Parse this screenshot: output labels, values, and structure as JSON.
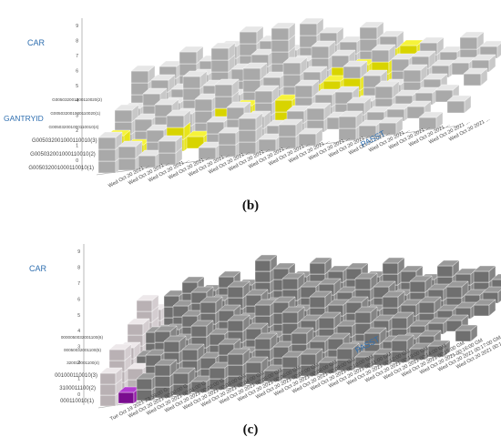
{
  "colors": {
    "gray_top": "#e6e6e6",
    "gray_front": "#a9a9a9",
    "gray_side": "#c8c8c8",
    "dark_top": "#9a9a9a",
    "dark_front": "#6f6f6f",
    "dark_side": "#858585",
    "yellow_top": "#f6f33a",
    "yellow_front": "#d8d400",
    "yellow_side": "#e8e51a",
    "magenta_top": "#b23bd1",
    "magenta_front": "#7a0d8f",
    "magenta_side": "#941aa9",
    "pale_top": "#ede8ea",
    "pale_front": "#b9b1b4",
    "pale_side": "#d4cdd0",
    "axis_title": "#2f6fb0",
    "tick": "#444444",
    "axis_line": "#9a9a9a"
  },
  "chart_data": [
    {
      "type": "bar3d",
      "panel_label": "(b)",
      "z_axis_label": "CAR",
      "y_axis_label": "GANTRYID",
      "x_axis_label": "PASST",
      "z_ticks": [
        "0",
        "1",
        "2",
        "3",
        "4",
        "5",
        "6",
        "7",
        "8",
        "9"
      ],
      "y_categories": [
        "G005032001000110010(1)",
        "G005032001000110010(2)",
        "G005032001000110010(3)",
        "G005032001000110010(4)",
        "G005032001000110020(1)",
        "G005032001000110020(2)"
      ],
      "x_tick_labels": [
        "Wed Oct 20 2021 ...",
        "Wed Oct 20 2021 ...",
        "Wed Oct 20 2021 ...",
        "Wed Oct 20 2021 ...",
        "Wed Oct 20 2021 ...",
        "Wed Oct 20 2021 ...",
        "Wed Oct 20 2021 ...",
        "Wed Oct 20 2021 ...",
        "Wed Oct 20 2021 ...",
        "Wed Oct 20 2021 ...",
        "Wed Oct 20 2021 ...",
        "Wed Oct 20 2021 ...",
        "Wed Oct 20 2021 ...",
        "Wed Oct 20 2021 ...",
        "Wed Oct 20 2021 ...",
        "Wed Oct 20 2021 ...",
        "Wed Oct 20 2021 ...",
        "Wed Oct 20 2021 ..."
      ],
      "stacks": [
        [
          3,
          2,
          1,
          2,
          0,
          1,
          2,
          3,
          1,
          2,
          1,
          0,
          2,
          1,
          1,
          0,
          1,
          0
        ],
        [
          2,
          1,
          2,
          3,
          1,
          2,
          3,
          2,
          1,
          2,
          2,
          1,
          2,
          1,
          1,
          1,
          0,
          1
        ],
        [
          3,
          2,
          3,
          2,
          3,
          4,
          2,
          3,
          2,
          3,
          2,
          2,
          1,
          2,
          1,
          1,
          1,
          0
        ],
        [
          2,
          3,
          2,
          4,
          3,
          2,
          4,
          3,
          4,
          3,
          2,
          3,
          2,
          1,
          2,
          1,
          0,
          1
        ],
        [
          4,
          3,
          2,
          3,
          5,
          3,
          4,
          6,
          3,
          4,
          3,
          2,
          3,
          2,
          2,
          1,
          1,
          1
        ],
        [
          2,
          3,
          4,
          3,
          4,
          5,
          4,
          3,
          5,
          4,
          3,
          4,
          3,
          2,
          2,
          1,
          2,
          1
        ]
      ],
      "highlight_color": "yellow",
      "highlight_cells": [
        [
          1,
          0
        ],
        [
          1,
          1
        ],
        [
          1,
          3
        ],
        [
          1,
          4
        ],
        [
          2,
          5
        ],
        [
          2,
          6
        ],
        [
          2,
          8
        ],
        [
          3,
          9
        ],
        [
          3,
          10
        ],
        [
          3,
          11
        ],
        [
          4,
          10
        ],
        [
          4,
          11
        ],
        [
          4,
          12
        ],
        [
          5,
          12
        ],
        [
          5,
          13
        ]
      ]
    },
    {
      "type": "bar3d",
      "panel_label": "(c)",
      "z_axis_label": "CAR",
      "y_axis_label": "",
      "x_axis_label": "PASST",
      "z_ticks": [
        "0",
        "1",
        "2",
        "3",
        "4",
        "5",
        "6",
        "7",
        "8",
        "9"
      ],
      "y_categories": [
        "000110010(1)",
        "3100011100(2)",
        "001000110010(3)",
        "320010001100(4)",
        "00050032001100(5)",
        "0000050032001100(6)"
      ],
      "x_tick_labels": [
        "Tue Oct 19 2021 23:59:00 G",
        "Wed Oct 20 2021 00:00:00 G",
        "Wed Oct 20 2021 00:01:00 G",
        "Wed Oct 20 2021 00:02:00 G",
        "Wed Oct 20 2021 00:03:00 GM",
        "Wed Oct 20 2021 00:04:00 GM",
        "Wed Oct 20 2021 00:05:00 GM",
        "Wed Oct 20 2021 00:06:00 GM",
        "Wed Oct 20 2021 00:07:00 GM",
        "Wed Oct 20 2021 00:08:00 GM",
        "Wed Oct 20 2021 00:09:00 GM",
        "Wed Oct 20 2021 00:10:00 GM",
        "Wed Oct 20 2021 00:11:00 GM",
        "Wed Oct 20 2021 00:12:00 GM",
        "Wed Oct 20 2021 00:13:00 GM",
        "Wed Oct 20 2021 00:14:00 GM",
        "Wed Oct 20 2021 00:15:00 GM",
        "Wed Oct 20 2021 00:16:00 GM",
        "Wed Oct 20 2021 00:17:00 GM",
        "Wed Oct 20 2021 00:18:00 GM"
      ],
      "stacks": [
        [
          3,
          1,
          2,
          3,
          2,
          1,
          2,
          3,
          2,
          1,
          2,
          2,
          1,
          2,
          1,
          1,
          2,
          1,
          1,
          0
        ],
        [
          4,
          2,
          3,
          4,
          3,
          2,
          3,
          2,
          3,
          2,
          3,
          2,
          2,
          1,
          2,
          1,
          1,
          1,
          0,
          1
        ],
        [
          3,
          2,
          4,
          3,
          4,
          3,
          4,
          3,
          2,
          4,
          3,
          3,
          2,
          3,
          2,
          2,
          1,
          1,
          1,
          0
        ],
        [
          4,
          3,
          3,
          4,
          5,
          4,
          3,
          4,
          4,
          3,
          4,
          3,
          3,
          2,
          3,
          2,
          2,
          1,
          1,
          1
        ],
        [
          5,
          2,
          4,
          5,
          4,
          5,
          4,
          3,
          5,
          4,
          4,
          3,
          4,
          3,
          2,
          3,
          2,
          2,
          1,
          1
        ],
        [
          3,
          4,
          5,
          4,
          5,
          4,
          6,
          5,
          4,
          5,
          4,
          4,
          3,
          4,
          3,
          2,
          3,
          2,
          2,
          1
        ]
      ],
      "highlight_color": "magenta",
      "highlight_cells": [
        [
          0,
          1
        ]
      ],
      "pale_rows": [
        0,
        1
      ]
    }
  ]
}
